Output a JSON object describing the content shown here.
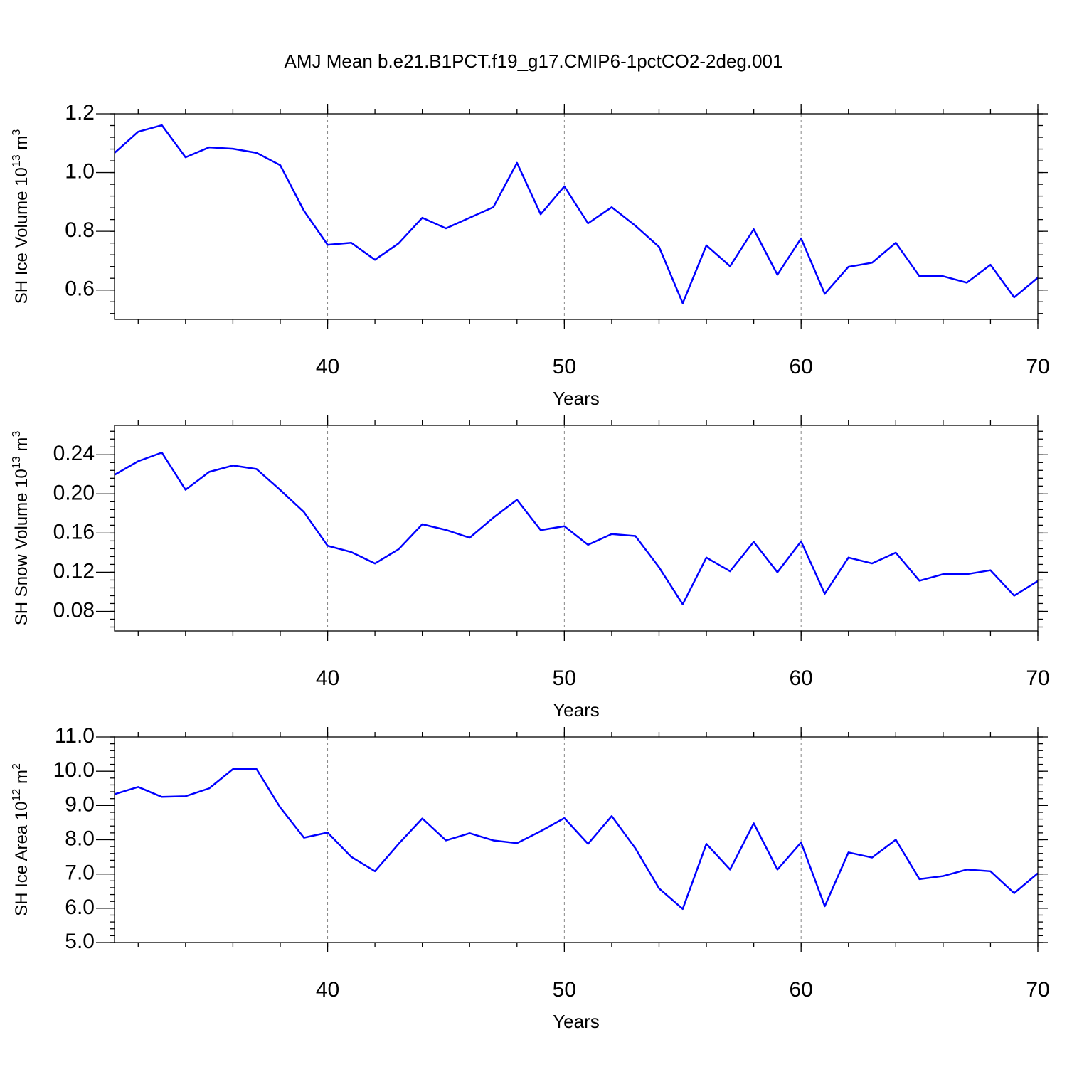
{
  "chart_data": [
    {
      "type": "line",
      "title": "AMJ Mean b.e21.B1PCT.f19_g17.CMIP6-1pctCO2-2deg.001",
      "xlabel": "Years",
      "ylabel": [
        "SH Ice Volume 10",
        "13",
        " m",
        "3"
      ],
      "x": [
        31,
        32,
        33,
        34,
        35,
        36,
        37,
        38,
        39,
        40,
        41,
        42,
        43,
        44,
        45,
        46,
        47,
        48,
        49,
        50,
        51,
        52,
        53,
        54,
        55,
        56,
        57,
        58,
        59,
        60,
        61,
        62,
        63,
        64,
        65,
        66,
        67,
        68,
        69,
        70
      ],
      "series": [
        {
          "color": "#0000ff",
          "values": [
            1.067,
            1.139,
            1.161,
            1.052,
            1.086,
            1.081,
            1.067,
            1.025,
            0.87,
            0.754,
            0.761,
            0.703,
            0.759,
            0.846,
            0.81,
            0.846,
            0.882,
            1.033,
            0.858,
            0.953,
            0.827,
            0.882,
            0.819,
            0.747,
            0.555,
            0.752,
            0.681,
            0.807,
            0.652,
            0.776,
            0.587,
            0.679,
            0.693,
            0.761,
            0.647,
            0.647,
            0.625,
            0.686,
            0.575,
            0.642
          ]
        }
      ],
      "xlim": [
        31,
        70
      ],
      "xticks": [
        40,
        50,
        60,
        70
      ],
      "ylim": [
        0.5,
        1.2
      ],
      "yticks": [
        0.6,
        0.8,
        {
          "value": 1,
          "label": "1.0"
        },
        1.2
      ],
      "grid": "x"
    },
    {
      "type": "line",
      "xlabel": "Years",
      "ylabel": [
        "SH Snow Volume 10",
        "13",
        " m",
        "3"
      ],
      "x": [
        31,
        32,
        33,
        34,
        35,
        36,
        37,
        38,
        39,
        40,
        41,
        42,
        43,
        44,
        45,
        46,
        47,
        48,
        49,
        50,
        51,
        52,
        53,
        54,
        55,
        56,
        57,
        58,
        59,
        60,
        61,
        62,
        63,
        64,
        65,
        66,
        67,
        68,
        69,
        70
      ],
      "series": [
        {
          "color": "#0000ff",
          "values": [
            0.2195,
            0.2334,
            0.2422,
            0.2042,
            0.2225,
            0.229,
            0.2254,
            0.204,
            0.1815,
            0.147,
            0.1406,
            0.1289,
            0.1435,
            0.169,
            0.1632,
            0.1552,
            0.1757,
            0.194,
            0.163,
            0.167,
            0.148,
            0.159,
            0.157,
            0.125,
            0.0872,
            0.135,
            0.121,
            0.151,
            0.12,
            0.1515,
            0.098,
            0.135,
            0.129,
            0.14,
            0.1113,
            0.118,
            0.118,
            0.122,
            0.096,
            0.111
          ]
        }
      ],
      "xlim": [
        31,
        70
      ],
      "xticks": [
        40,
        50,
        60,
        70
      ],
      "ylim": [
        0.06,
        0.27
      ],
      "yticks": [
        {
          "value": 0.08,
          "label": "0.08"
        },
        {
          "value": 0.12,
          "label": "0.12"
        },
        {
          "value": 0.16,
          "label": "0.16"
        },
        {
          "value": 0.2,
          "label": "0.20"
        },
        {
          "value": 0.24,
          "label": "0.24"
        }
      ],
      "grid": "x"
    },
    {
      "type": "line",
      "xlabel": "Years",
      "ylabel": [
        "SH Ice Area 10",
        "12",
        " m",
        "2"
      ],
      "x": [
        31,
        32,
        33,
        34,
        35,
        36,
        37,
        38,
        39,
        40,
        41,
        42,
        43,
        44,
        45,
        46,
        47,
        48,
        49,
        50,
        51,
        52,
        53,
        54,
        55,
        56,
        57,
        58,
        59,
        60,
        61,
        62,
        63,
        64,
        65,
        66,
        67,
        68,
        69,
        70
      ],
      "series": [
        {
          "color": "#0000ff",
          "values": [
            9.33,
            9.54,
            9.25,
            9.27,
            9.5,
            10.06,
            10.06,
            8.94,
            8.06,
            8.21,
            7.5,
            7.08,
            7.88,
            8.62,
            7.98,
            8.19,
            7.98,
            7.9,
            8.25,
            8.63,
            7.88,
            8.69,
            7.75,
            6.58,
            5.98,
            7.88,
            7.13,
            8.48,
            7.13,
            7.92,
            6.06,
            7.63,
            7.48,
            8.0,
            6.85,
            6.94,
            7.13,
            7.08,
            6.44,
            7.02
          ]
        }
      ],
      "xlim": [
        31,
        70
      ],
      "xticks": [
        40,
        50,
        60,
        70
      ],
      "ylim": [
        5,
        11
      ],
      "yticks": [
        {
          "value": 5,
          "label": "5.0"
        },
        {
          "value": 6,
          "label": "6.0"
        },
        {
          "value": 7,
          "label": "7.0"
        },
        {
          "value": 8,
          "label": "8.0"
        },
        {
          "value": 9,
          "label": "9.0"
        },
        {
          "value": 10,
          "label": "10.0"
        },
        {
          "value": 11,
          "label": "11.0"
        }
      ],
      "grid": "x"
    }
  ]
}
